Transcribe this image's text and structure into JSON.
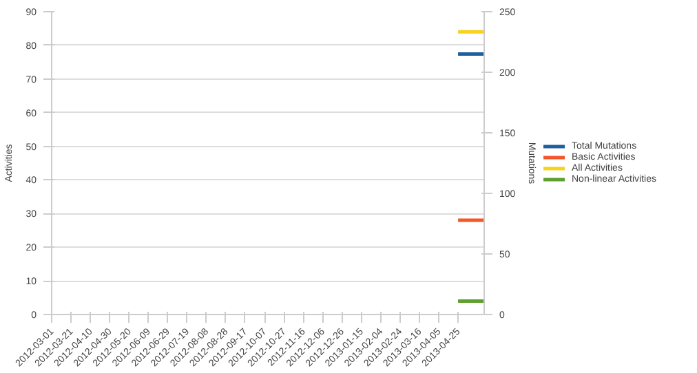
{
  "chart_data": {
    "type": "line",
    "ylabel": "Activities",
    "y2label": "Mutations",
    "x": [
      "2013-04-25",
      "2013-05-22"
    ],
    "series": [
      {
        "name": "Total Mutations",
        "color": "#1f5fa0",
        "values": [
          215,
          215
        ],
        "axis": "y2"
      },
      {
        "name": "Basic Activities",
        "color": "#f2572a",
        "values": [
          28,
          28
        ]
      },
      {
        "name": "All Activities",
        "color": "#f7d21e",
        "values": [
          84,
          84
        ]
      },
      {
        "name": "Non-linear Activities",
        "color": "#5ea02e",
        "values": [
          4,
          4
        ]
      }
    ],
    "xlim": [
      "2012-03-01",
      "2013-05-22"
    ],
    "xticks": [
      "2012-03-01",
      "2012-03-21",
      "2012-04-10",
      "2012-04-30",
      "2012-05-20",
      "2012-06-09",
      "2012-06-29",
      "2012-07-19",
      "2012-08-08",
      "2012-08-28",
      "2012-09-17",
      "2012-10-07",
      "2012-10-27",
      "2012-11-16",
      "2012-12-06",
      "2012-12-26",
      "2013-01-15",
      "2013-02-04",
      "2013-02-24",
      "2013-03-16",
      "2013-04-05",
      "2013-04-25"
    ],
    "ylim": [
      0,
      90
    ],
    "yticks": [
      0,
      10,
      20,
      30,
      40,
      50,
      60,
      70,
      80,
      90
    ],
    "y2lim": [
      0,
      250
    ],
    "y2ticks": [
      0,
      50,
      100,
      150,
      200,
      250
    ],
    "grid": "y",
    "legend": "right",
    "marker": "none",
    "line_style": "solid"
  }
}
